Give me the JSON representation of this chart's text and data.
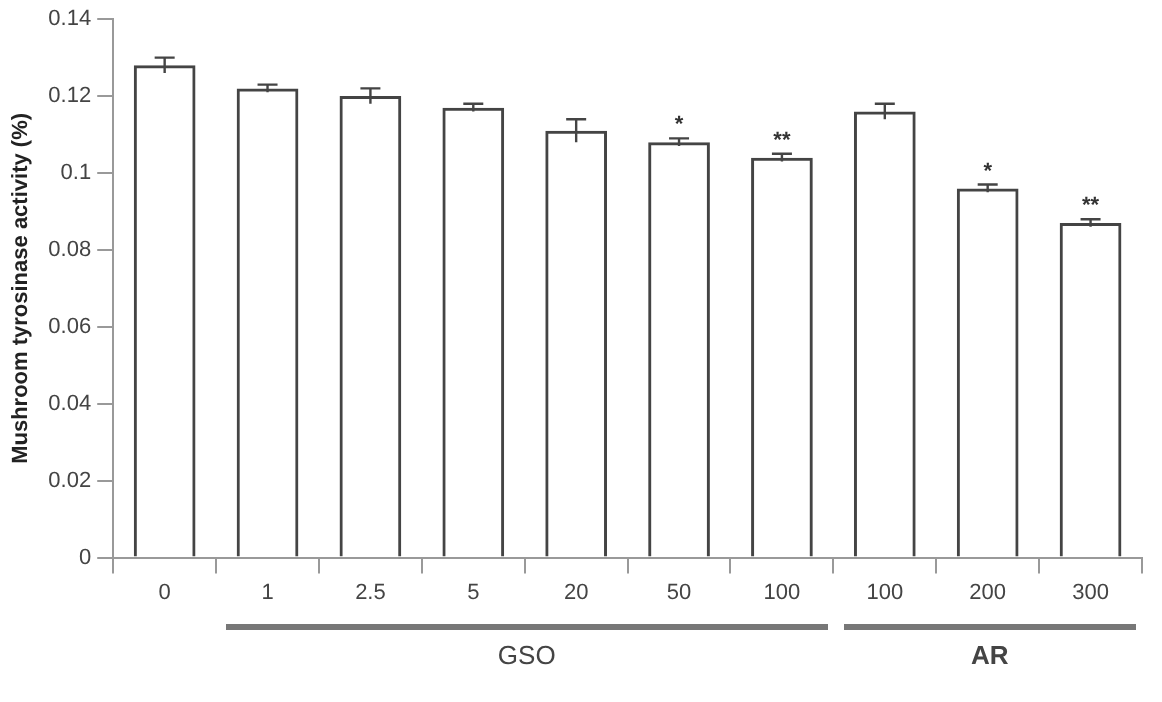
{
  "chart_data": {
    "type": "bar",
    "ylabel": "Mushroom tyrosinase activity (%)",
    "categories": [
      "0",
      "1",
      "2.5",
      "5",
      "20",
      "50",
      "100",
      "100",
      "200",
      "300"
    ],
    "values": [
      0.128,
      0.122,
      0.12,
      0.117,
      0.111,
      0.108,
      0.104,
      0.116,
      0.096,
      0.087
    ],
    "errors": [
      0.002,
      0.001,
      0.002,
      0.001,
      0.003,
      0.001,
      0.001,
      0.002,
      0.001,
      0.001
    ],
    "value_labels": [
      null,
      null,
      null,
      null,
      null,
      "*",
      "**",
      null,
      "*",
      "**"
    ],
    "color": "#444444",
    "ylim": [
      0,
      0.14
    ],
    "yticks": [
      0,
      0.02,
      0.04,
      0.06,
      0.08,
      0.1,
      0.12,
      0.14
    ],
    "annotations": [
      "GSO",
      "AR"
    ]
  }
}
